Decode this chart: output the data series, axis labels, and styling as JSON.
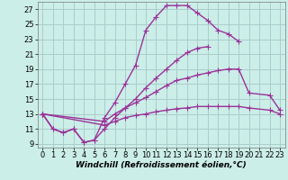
{
  "bg_color": "#cceee8",
  "grid_color": "#aacccc",
  "line_color": "#993399",
  "marker": "+",
  "marker_size": 4,
  "linewidth": 1.0,
  "xlabel": "Windchill (Refroidissement éolien,°C)",
  "xlabel_fontsize": 6.5,
  "tick_fontsize": 6,
  "xlim": [
    -0.5,
    23.5
  ],
  "ylim": [
    8.5,
    28
  ],
  "yticks": [
    9,
    11,
    13,
    15,
    17,
    19,
    21,
    23,
    25,
    27
  ],
  "xticks": [
    0,
    1,
    2,
    3,
    4,
    5,
    6,
    7,
    8,
    9,
    10,
    11,
    12,
    13,
    14,
    15,
    16,
    17,
    18,
    19,
    20,
    21,
    22,
    23
  ],
  "s1_x": [
    0,
    1,
    2,
    3,
    4,
    5,
    6,
    7,
    8,
    9,
    10,
    11,
    12,
    13,
    14,
    15,
    16,
    17,
    18,
    19
  ],
  "s1_y": [
    13,
    11,
    10.5,
    11,
    9.2,
    9.5,
    12.5,
    14.5,
    17.0,
    19.5,
    24.2,
    26.0,
    27.5,
    27.5,
    27.5,
    26.5,
    25.5,
    24.2,
    23.7,
    22.7
  ],
  "s2_x": [
    0,
    1,
    2,
    3,
    4,
    5,
    6,
    7,
    8,
    9,
    10,
    11,
    12,
    13,
    14,
    15,
    16
  ],
  "s2_y": [
    13,
    11,
    10.5,
    11,
    9.2,
    9.5,
    11.0,
    12.5,
    13.8,
    15.0,
    16.5,
    17.8,
    19.0,
    20.2,
    21.2,
    21.8,
    22.0
  ],
  "s3_x": [
    0,
    6,
    7,
    8,
    9,
    10,
    11,
    12,
    13,
    14,
    15,
    16,
    17,
    18,
    19,
    20,
    22,
    23
  ],
  "s3_y": [
    13,
    12.0,
    13.0,
    13.8,
    14.5,
    15.2,
    16.0,
    16.8,
    17.5,
    17.8,
    18.2,
    18.5,
    18.8,
    19.0,
    19.0,
    15.8,
    15.5,
    13.5
  ],
  "s4_x": [
    0,
    6,
    7,
    8,
    9,
    10,
    11,
    12,
    13,
    14,
    15,
    16,
    17,
    18,
    19,
    20,
    22,
    23
  ],
  "s4_y": [
    13,
    11.5,
    12.0,
    12.5,
    12.8,
    13.0,
    13.3,
    13.5,
    13.7,
    13.8,
    14.0,
    14.0,
    14.0,
    14.0,
    14.0,
    13.8,
    13.5,
    13.0
  ]
}
